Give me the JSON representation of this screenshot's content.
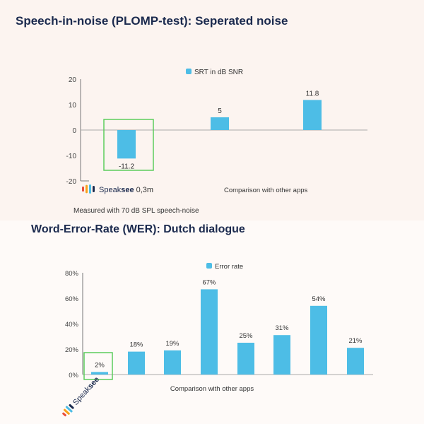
{
  "chart_data": [
    {
      "type": "bar",
      "title": "Speech-in-noise (PLOMP-test): Seperated noise",
      "legend": "SRT in dB SNR",
      "legend_position": "top-center",
      "grid": false,
      "ylim": [
        -20,
        20
      ],
      "yticks": [
        "20",
        "10",
        "0",
        "-10",
        "-20"
      ],
      "values": [
        -11.2,
        5,
        11.8
      ],
      "value_labels": [
        "-11.2",
        "5",
        "11.8"
      ],
      "highlight_index": 0,
      "bar_color": "#4dbde6",
      "highlight_color": "#5ccd5c",
      "x_label_left": "Speaksee 0,3m",
      "x_label_left_parts": [
        "Speak",
        "see",
        " 0,3m"
      ],
      "x_label_right": "Comparison with other apps",
      "footnote": "Measured with 70 dB SPL speech-noise"
    },
    {
      "type": "bar",
      "title": "Word-Error-Rate (WER): Dutch dialogue",
      "legend": "Error rate",
      "legend_position": "top-center",
      "grid": false,
      "ylim": [
        0,
        80
      ],
      "yticks": [
        "80%",
        "60%",
        "40%",
        "20%",
        "0%"
      ],
      "values": [
        2,
        18,
        19,
        67,
        25,
        31,
        54,
        21
      ],
      "value_labels": [
        "2%",
        "18%",
        "19%",
        "67%",
        "25%",
        "31%",
        "54%",
        "21%"
      ],
      "highlight_index": 0,
      "bar_color": "#4dbde6",
      "highlight_color": "#5ccd5c",
      "x_label_left": "Speaksee",
      "x_label_left_parts": [
        "Speak",
        "see"
      ],
      "x_label_right": "Comparison with other apps"
    }
  ],
  "colors": {
    "title": "#1b2a4e",
    "axis": "#888888",
    "text": "#333333",
    "brand_dark": "#1b2a4e",
    "logo_bars": [
      "#e94f3b",
      "#f7a21b",
      "#4dbde6",
      "#1b2a4e"
    ]
  }
}
